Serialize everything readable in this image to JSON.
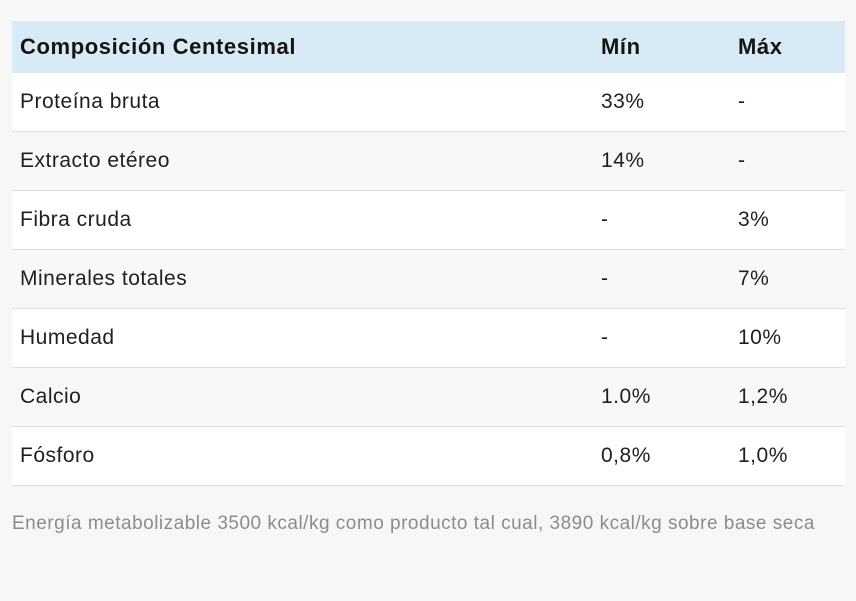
{
  "table": {
    "header": {
      "composition": "Composición Centesimal",
      "min": "Mín",
      "max": "Máx"
    },
    "rows": [
      {
        "label": "Proteína bruta",
        "min": "33%",
        "max": "-"
      },
      {
        "label": "Extracto etéreo",
        "min": "14%",
        "max": "-"
      },
      {
        "label": "Fibra cruda",
        "min": "-",
        "max": "3%"
      },
      {
        "label": "Minerales totales",
        "min": "-",
        "max": "7%"
      },
      {
        "label": "Humedad",
        "min": "-",
        "max": "10%"
      },
      {
        "label": "Calcio",
        "min": "1.0%",
        "max": "1,2%"
      },
      {
        "label": "Fósforo",
        "min": "0,8%",
        "max": "1,0%"
      }
    ]
  },
  "footnote": "Energía metabolizable 3500 kcal/kg como producto tal cual, 3890 kcal/kg sobre base seca",
  "colors": {
    "page_bg": "#f7f7f7",
    "header_bg": "#d8eaf5",
    "stripe_bg": "#f8f8f8",
    "row_bg": "#ffffff",
    "divider": "#dedede",
    "text": "#1f1f1f",
    "footnote_text": "#8c8c8c"
  }
}
